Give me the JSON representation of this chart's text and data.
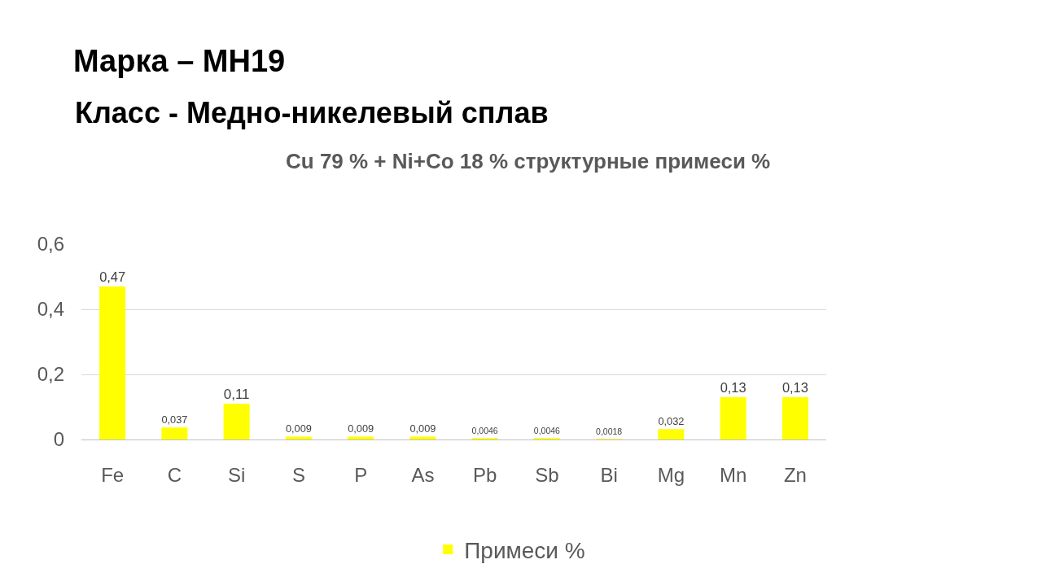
{
  "chart_data": {
    "type": "bar",
    "title": "Марка – МН19",
    "subtitle": "Класс - Медно-никелевый сплав",
    "annotations": [
      "Cu 79 % + Ni+Co 18 % структурные примеси %"
    ],
    "categories": [
      "Fe",
      "C",
      "Si",
      "S",
      "P",
      "As",
      "Pb",
      "Sb",
      "Bi",
      "Mg",
      "Mn",
      "Zn"
    ],
    "series": [
      {
        "name": "Примеси %",
        "color": "#ffff00",
        "values": [
          0.47,
          0.037,
          0.11,
          0.009,
          0.009,
          0.009,
          0.0046,
          0.0046,
          0.0018,
          0.032,
          0.13,
          0.13
        ],
        "value_labels": [
          "0,47",
          "0,037",
          "0,11",
          "0,009",
          "0,009",
          "0,009",
          "0,0046",
          "0,0046",
          "0,0018",
          "0,032",
          "0,13",
          "0,13"
        ]
      }
    ],
    "ylim": [
      0,
      0.6
    ],
    "yticks": [
      0,
      {
        "value": 0.2,
        "label": "0,2"
      },
      {
        "value": 0.4,
        "label": "0,4"
      },
      {
        "value": 0.6,
        "label": "0,6"
      }
    ],
    "grid": "y",
    "legend": "bottom"
  }
}
